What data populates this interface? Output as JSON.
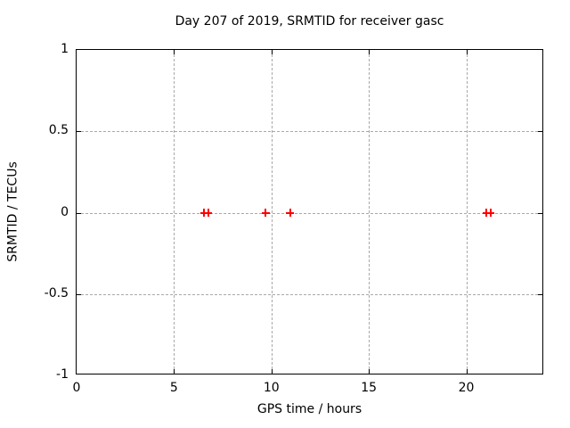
{
  "colors": {
    "background": "#ffffff",
    "border": "#000000",
    "grid": "#a9a9a9",
    "text": "#000000",
    "series1": "#ff0000"
  },
  "chart_data": {
    "type": "scatter",
    "title": "Day 207 of 2019, SRMTID for receiver gasc",
    "xlabel": "GPS time / hours",
    "ylabel": "SRMTID / TECUs",
    "xlim": [
      0,
      24
    ],
    "ylim": [
      -1,
      1
    ],
    "xticks": [
      0,
      5,
      10,
      15,
      20
    ],
    "yticks": [
      -1,
      -0.5,
      0,
      0.5,
      1
    ],
    "grid": true,
    "legend_position": "none",
    "series": [
      {
        "name": "SRMTID",
        "marker": "plus",
        "color": "#ff0000",
        "points": [
          {
            "x": 6.55,
            "y": 0
          },
          {
            "x": 6.75,
            "y": 0
          },
          {
            "x": 9.7,
            "y": 0
          },
          {
            "x": 10.95,
            "y": 0
          },
          {
            "x": 21.05,
            "y": 0
          },
          {
            "x": 21.25,
            "y": 0
          }
        ]
      }
    ]
  }
}
